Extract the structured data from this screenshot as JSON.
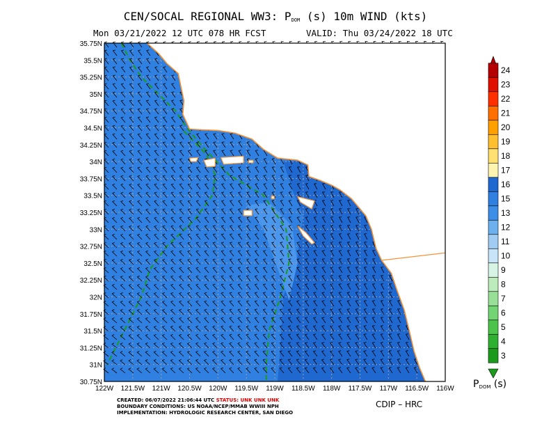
{
  "header": {
    "title_pre": "CEN/SOCAL REGIONAL WW3: P",
    "title_sub": "DOM",
    "title_post": " (s) 10m WIND (kts)",
    "run_line": "Mon 03/21/2022 12 UTC 078 HR FCST",
    "valid_line": "VALID: Thu 03/24/2022 18 UTC"
  },
  "footer": {
    "created_label": "CREATED: 06/07/2022 21:06:44 UTC ",
    "status_label": "STATUS: UNK UNK UNK",
    "boundary": "BOUNDARY CONDITIONS: US NOAA/NCEP/MMAB WWIII NPH",
    "implementation": "IMPLEMENTATION: HYDROLOGIC RESEARCH CENTER, SAN DIEGO",
    "credit": "CDIP – HRC"
  },
  "colorbar": {
    "label_pre": "P",
    "label_sub": "DOM",
    "label_post": " (s)",
    "labels": [
      "3",
      "4",
      "5",
      "6",
      "7",
      "8",
      "9",
      "10",
      "11",
      "12",
      "13",
      "15",
      "16",
      "17",
      "18",
      "19",
      "20",
      "21",
      "22",
      "23",
      "24"
    ],
    "colors": [
      "#1c9a1c",
      "#30b030",
      "#4cc44c",
      "#72d472",
      "#98e098",
      "#bcecbc",
      "#d8f4e4",
      "#c8e4f8",
      "#a0ccf4",
      "#6cb0ee",
      "#3c8ee6",
      "#2f80e0",
      "#1f68d0",
      "#fff4b0",
      "#ffe070",
      "#ffc030",
      "#ffa000",
      "#ff7000",
      "#ff3000",
      "#e01000",
      "#b40000"
    ],
    "text_color": "#000000"
  },
  "map_colors": {
    "sea": "#2f80e0",
    "sea_light": "#4a96ec",
    "sea_dark": "#1f68d0",
    "coast": "#f39237",
    "contour": "#1c9a1c",
    "grid": "#a0a0a0",
    "barb": "#000000"
  },
  "chart_data": {
    "type": "map",
    "title": "CEN/SOCAL REGIONAL WW3: PDOM (s) 10m WIND (kts)",
    "xlabel": "",
    "ylabel": "",
    "x_ticks": [
      "122W",
      "121.5W",
      "121W",
      "120.5W",
      "120W",
      "119.5W",
      "119W",
      "118.5W",
      "118W",
      "117.5W",
      "117W",
      "116.5W",
      "116W"
    ],
    "y_ticks": [
      "30.75N",
      "31N",
      "31.25N",
      "31.5N",
      "31.75N",
      "32N",
      "32.25N",
      "32.5N",
      "32.75N",
      "33N",
      "33.25N",
      "33.5N",
      "33.75N",
      "34N",
      "34.25N",
      "34.5N",
      "34.75N",
      "35N",
      "35.25N",
      "35.5N",
      "35.75N"
    ],
    "xlim": [
      -122,
      -116
    ],
    "ylim": [
      30.75,
      35.75
    ],
    "grid": true,
    "colorbar_range": [
      3,
      24
    ],
    "dominant_period_range_s": [
      13,
      16
    ],
    "coastline": [
      [
        -121.25,
        35.75
      ],
      [
        -121.05,
        35.6
      ],
      [
        -120.9,
        35.45
      ],
      [
        -120.7,
        35.3
      ],
      [
        -120.65,
        35.1
      ],
      [
        -120.6,
        34.9
      ],
      [
        -120.62,
        34.7
      ],
      [
        -120.5,
        34.48
      ],
      [
        -120.3,
        34.47
      ],
      [
        -120.0,
        34.46
      ],
      [
        -119.7,
        34.42
      ],
      [
        -119.4,
        34.33
      ],
      [
        -119.2,
        34.18
      ],
      [
        -118.95,
        34.05
      ],
      [
        -118.6,
        34.02
      ],
      [
        -118.42,
        33.95
      ],
      [
        -118.4,
        33.78
      ],
      [
        -118.2,
        33.72
      ],
      [
        -118.0,
        33.65
      ],
      [
        -117.85,
        33.58
      ],
      [
        -117.65,
        33.45
      ],
      [
        -117.4,
        33.2
      ],
      [
        -117.3,
        33.0
      ],
      [
        -117.22,
        32.72
      ],
      [
        -117.12,
        32.54
      ],
      [
        -116.95,
        32.35
      ],
      [
        -116.85,
        32.1
      ],
      [
        -116.72,
        31.8
      ],
      [
        -116.62,
        31.45
      ],
      [
        -116.55,
        31.2
      ],
      [
        -116.45,
        30.95
      ],
      [
        -116.35,
        30.75
      ]
    ],
    "islands": [
      [
        [
          -120.5,
          34.05
        ],
        [
          -120.35,
          34.06
        ],
        [
          -120.38,
          34.0
        ],
        [
          -120.48,
          34.0
        ]
      ],
      [
        [
          -120.25,
          34.02
        ],
        [
          -120.05,
          34.05
        ],
        [
          -120.05,
          33.93
        ],
        [
          -120.2,
          33.92
        ]
      ],
      [
        [
          -119.95,
          34.06
        ],
        [
          -119.55,
          34.08
        ],
        [
          -119.55,
          33.98
        ],
        [
          -119.9,
          33.96
        ]
      ],
      [
        [
          -119.46,
          34.02
        ],
        [
          -119.38,
          34.02
        ],
        [
          -119.38,
          33.98
        ],
        [
          -119.46,
          33.98
        ]
      ],
      [
        [
          -119.06,
          33.49
        ],
        [
          -119.01,
          33.49
        ],
        [
          -119.01,
          33.45
        ],
        [
          -119.06,
          33.45
        ]
      ],
      [
        [
          -118.6,
          33.48
        ],
        [
          -118.3,
          33.42
        ],
        [
          -118.35,
          33.3
        ],
        [
          -118.55,
          33.4
        ]
      ],
      [
        [
          -119.55,
          33.28
        ],
        [
          -119.4,
          33.28
        ],
        [
          -119.4,
          33.2
        ],
        [
          -119.55,
          33.2
        ]
      ],
      [
        [
          -118.6,
          33.05
        ],
        [
          -118.45,
          32.95
        ],
        [
          -118.3,
          32.8
        ],
        [
          -118.35,
          32.78
        ],
        [
          -118.5,
          32.9
        ]
      ]
    ],
    "border": [
      [
        -117.12,
        32.54
      ],
      [
        -116,
        32.65
      ]
    ],
    "period_contours": [
      {
        "value": "15",
        "points": [
          [
            -121.7,
            35.75
          ],
          [
            -121.55,
            35.5
          ],
          [
            -121.35,
            35.25
          ],
          [
            -121.05,
            35.0
          ],
          [
            -120.75,
            34.75
          ],
          [
            -120.55,
            34.5
          ],
          [
            -120.25,
            34.2
          ],
          [
            -119.8,
            33.8
          ],
          [
            -119.2,
            33.5
          ],
          [
            -118.8,
            33.0
          ],
          [
            -118.75,
            32.5
          ],
          [
            -118.9,
            32.0
          ],
          [
            -119.1,
            31.5
          ],
          [
            -119.15,
            31.0
          ],
          [
            -119.15,
            30.75
          ]
        ]
      },
      {
        "value": "15",
        "points": [
          [
            -120.6,
            34.45
          ],
          [
            -120.2,
            34.1
          ],
          [
            -120.05,
            33.8
          ],
          [
            -120.1,
            33.5
          ],
          [
            -120.4,
            33.15
          ],
          [
            -120.9,
            32.75
          ],
          [
            -121.2,
            32.4
          ],
          [
            -121.35,
            32.0
          ],
          [
            -121.65,
            31.5
          ],
          [
            -121.95,
            31.0
          ]
        ]
      }
    ],
    "wind_note": "10m wind barbs (kts), predominantly northwesterly"
  }
}
